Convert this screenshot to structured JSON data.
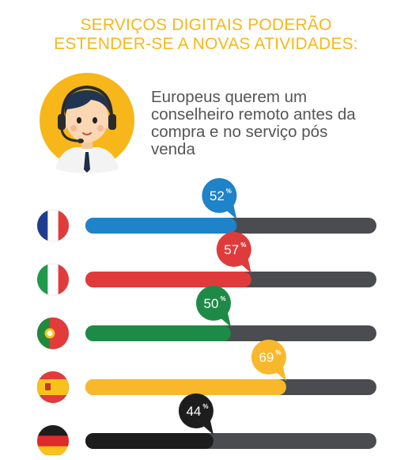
{
  "title_lines": [
    "SERVIÇOS DIGITAIS PODERÃO",
    "ESTENDER-SE A NOVAS ATIVIDADES:"
  ],
  "caption_lines": [
    "Europeus querem um",
    "conselheiro remoto antes da",
    "compra e no serviço pós",
    "venda"
  ],
  "icon": "customer-support-agent-headset-icon",
  "colors": {
    "title": "#f7b71a",
    "track": "#4a4c4f",
    "text": "#555555"
  },
  "chart_data": {
    "type": "bar",
    "orientation": "horizontal",
    "unit": "%",
    "xlim": [
      0,
      100
    ],
    "categories": [
      "france-flag",
      "italy-flag",
      "portugal-flag",
      "spain-flag",
      "germany-flag"
    ],
    "values": [
      52,
      57,
      50,
      69,
      44
    ],
    "labels": [
      "52",
      "57",
      "50",
      "69",
      "44"
    ],
    "colors": [
      "#1e83c8",
      "#e03b3b",
      "#1e8a47",
      "#f9b82b",
      "#1d1d1d"
    ]
  }
}
